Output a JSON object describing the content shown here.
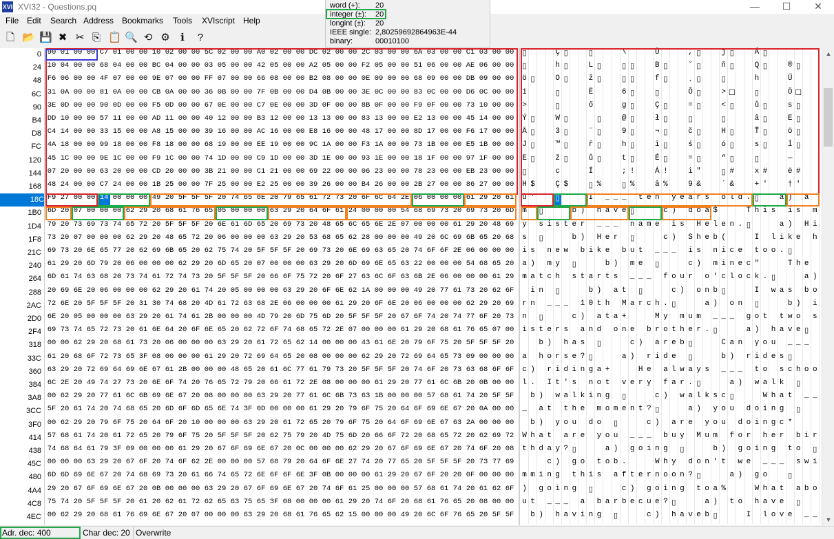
{
  "window": {
    "title": "XVI32 - Questions.pq",
    "app_icon_text": "XVI",
    "minimize_label": "—",
    "maximize_label": "☐",
    "close_label": "✕"
  },
  "menu": [
    "File",
    "Edit",
    "Search",
    "Address",
    "Bookmarks",
    "Tools",
    "XVIscript",
    "Help"
  ],
  "toolbar_icons": [
    "new-file-icon",
    "open-folder-icon",
    "save-icon",
    "delete-icon",
    "cut-icon",
    "copy-icon",
    "paste-icon",
    "find-icon",
    "replace-icon",
    "settings-icon",
    "script-icon",
    "help-icon"
  ],
  "toolbar_glyphs": [
    "🗋",
    "📂",
    "💾",
    "✖",
    "✂",
    "⎘",
    "📋",
    "🔍",
    "⟲",
    "⚙",
    "ℹ",
    "?"
  ],
  "inspector": {
    "rows": [
      {
        "label": "word (+):",
        "value": "20"
      },
      {
        "label": "integer (±):",
        "value": "20"
      },
      {
        "label": "longint (±):",
        "value": "20"
      },
      {
        "label": "IEEE single:",
        "value": "2,80259692864963E-44"
      },
      {
        "label": "binary:",
        "value": "00010100"
      }
    ]
  },
  "hex": {
    "addresses": [
      "0",
      "24",
      "48",
      "6C",
      "90",
      "B4",
      "D8",
      "FC",
      "120",
      "144",
      "168",
      "18C",
      "1B0",
      "1D4",
      "1F8",
      "21C",
      "240",
      "264",
      "288",
      "2AC",
      "2D0",
      "2F4",
      "318",
      "33C",
      "360",
      "384",
      "3A8",
      "3CC",
      "3F0",
      "414",
      "438",
      "45C",
      "480",
      "4A4",
      "4C8",
      "4EC"
    ],
    "rows": [
      "90 01 00 00 C7 01 00 00 10 02 00 00 5C 02 00 00 A0 02 00 00 DC 02 00 00 2C 03 00 00 6A 03 00 00 C1 03 00 00",
      "10 04 00 00 68 04 00 00 BC 04 00 00 03 05 00 00 42 05 00 00 A2 05 00 00 F2 05 00 00 51 06 00 00 AE 06 00 00",
      "F6 06 00 00 4F 07 00 00 9E 07 00 00 FF 07 00 00 66 08 00 00 B2 08 00 00 0E 09 00 00 68 09 00 00 DB 09 00 00",
      "31 0A 00 00 81 0A 00 00 CB 0A 00 00 36 0B 00 00 7F 0B 00 00 D4 0B 00 00 3E 0C 00 00 83 0C 00 00 D6 0C 00 00",
      "3E 0D 00 00 90 0D 00 00 F5 0D 00 00 67 0E 00 00 C7 0E 00 00 3D 0F 00 00 8B 0F 00 00 F9 0F 00 00 73 10 00 00",
      "DD 10 00 00 57 11 00 00 AD 11 00 00 40 12 00 00 B3 12 00 00 13 13 00 00 83 13 00 00 E2 13 00 00 45 14 00 00",
      "C4 14 00 00 33 15 00 00 A8 15 00 00 39 16 00 00 AC 16 00 00 E8 16 00 00 48 17 00 00 8D 17 00 00 F6 17 00 00",
      "4A 18 00 00 99 18 00 00 F8 18 00 00 68 19 00 00 EE 19 00 00 9C 1A 00 00 F3 1A 00 00 73 1B 00 00 E5 1B 00 00",
      "45 1C 00 00 9E 1C 00 00 F9 1C 00 00 74 1D 00 00 C9 1D 00 00 3D 1E 00 00 93 1E 00 00 18 1F 00 00 97 1F 00 00",
      "07 20 00 00 63 20 00 00 CD 20 00 00 3B 21 00 00 C1 21 00 00 69 22 00 00 06 23 00 00 78 23 00 00 EB 23 00 00",
      "48 24 00 00 C7 24 00 00 1B 25 00 00 7F 25 00 00 E2 25 00 00 39 26 00 00 B4 26 00 00 2B 27 00 00 86 27 00 00",
      "F9 27 00 00 14 00 00 00 49 20 5F 5F 5F 20 74 65 6E 20 79 65 61 72 73 20 6F 6C 64 2E 06 00 00 00 61 29 20 61",
      "6D 20 07 00 00 00 62 29 20 68 61 76 65 05 00 00 00 63 29 20 64 6F 61 24 00 00 00 54 68 69 73 20 69 73 20 6D",
      "79 20 73 69 73 74 65 72 20 5F 5F 5F 20 6E 61 6D 65 20 69 73 20 48 65 6C 65 6E 2E 07 00 00 00 61 29 20 48 69",
      "73 20 07 00 00 00 62 29 20 48 65 72 20 06 00 00 00 63 29 20 53 68 65 62 28 00 00 00 49 20 6C 69 6B 65 20 68",
      "69 73 20 6E 65 77 20 62 69 6B 65 20 62 75 74 20 5F 5F 5F 20 69 73 20 6E 69 63 65 20 74 6F 6F 2E 06 00 00 00",
      "61 29 20 6D 79 20 06 00 00 00 62 29 20 6D 65 20 07 00 00 00 63 29 20 6D 69 6E 65 63 22 00 00 00 54 68 65 20",
      "6D 61 74 63 68 20 73 74 61 72 74 73 20 5F 5F 5F 20 66 6F 75 72 20 6F 27 63 6C 6F 63 6B 2E 06 00 00 00 61 29",
      "20 69 6E 20 06 00 00 00 62 29 20 61 74 20 05 00 00 00 63 29 20 6F 6E 62 1A 00 00 00 49 20 77 61 73 20 62 6F",
      "72 6E 20 5F 5F 5F 20 31 30 74 68 20 4D 61 72 63 68 2E 06 00 00 00 61 29 20 6F 6E 20 06 00 00 00 62 29 20 69",
      "6E 20 05 00 00 00 63 29 20 61 74 61 2B 00 00 00 4D 79 20 6D 75 6D 20 5F 5F 5F 20 67 6F 74 20 74 77 6F 20 73",
      "69 73 74 65 72 73 20 61 6E 64 20 6F 6E 65 20 62 72 6F 74 68 65 72 2E 07 00 00 00 61 29 20 68 61 76 65 07 00",
      "00 00 62 29 20 68 61 73 20 06 00 00 00 63 29 20 61 72 65 62 14 00 00 00 43 61 6E 20 79 6F 75 20 5F 5F 5F 20",
      "61 20 68 6F 72 73 65 3F 08 00 00 00 61 29 20 72 69 64 65 20 08 00 00 00 62 29 20 72 69 64 65 73 09 00 00 00",
      "63 29 20 72 69 64 69 6E 67 61 2B 00 00 00 48 65 20 61 6C 77 61 79 73 20 5F 5F 5F 20 74 6F 20 73 63 68 6F 6F",
      "6C 2E 20 49 74 27 73 20 6E 6F 74 20 76 65 72 79 20 66 61 72 2E 08 00 00 00 61 29 20 77 61 6C 6B 20 0B 00 00",
      "00 62 29 20 77 61 6C 6B 69 6E 67 20 08 00 00 00 63 29 20 77 61 6C 6B 73 63 1B 00 00 00 57 68 61 74 20 5F 5F",
      "5F 20 61 74 20 74 68 65 20 6D 6F 6D 65 6E 74 3F 0D 00 00 00 61 29 20 79 6F 75 20 64 6F 69 6E 67 20 0A 00 00",
      "00 62 29 20 79 6F 75 20 64 6F 20 10 00 00 00 63 29 20 61 72 65 20 79 6F 75 20 64 6F 69 6E 67 63 2A 00 00 00",
      "57 68 61 74 20 61 72 65 20 79 6F 75 20 5F 5F 5F 20 62 75 79 20 4D 75 6D 20 66 6F 72 20 68 65 72 20 62 69 72",
      "74 68 64 61 79 3F 09 00 00 00 61 29 20 67 6F 69 6E 67 20 0C 00 00 00 62 29 20 67 6F 69 6E 67 20 74 6F 20 08",
      "00 00 00 63 29 20 67 6F 20 74 6F 62 2E 00 00 00 57 68 79 20 64 6F 6E 27 74 20 77 65 20 5F 5F 5F 20 73 77 69",
      "6D 6D 69 6E 67 20 74 68 69 73 20 61 66 74 65 72 6E 6F 6F 6E 3F 0B 00 00 00 61 29 20 67 6F 20 20 0F 00 00 00",
      "29 20 67 6F 69 6E 67 20 0B 00 00 00 63 29 20 67 6F 69 6E 67 20 74 6F 61 25 00 00 00 57 68 61 74 20 61 62 6F",
      "75 74 20 5F 5F 5F 20 61 20 62 61 72 62 65 63 75 65 3F 08 00 00 00 61 29 20 74 6F 20 68 61 76 65 20 08 00 00",
      "00 62 29 20 68 61 76 69 6E 67 20 07 00 00 00 63 29 20 68 61 76 65 62 15 00 00 00 49 20 6C 6F 76 65 20 5F 5F"
    ],
    "selected_row": 11,
    "selected_col": 4,
    "selected_addr_row": 11
  },
  "text_rows": [
    "▯   Ç▯  ▯   \\   Ü   ,▯  j▯  Á▯",
    "▯   h▯  L▯  ▯▯  B▯  ˘▯  ň▯  Q▯  ®▯",
    "ö▯  O▯  ž▯  ▯▯  f▯  ˛▯  ▯   h   Ű",
    "1   ▯   Ë   6▯  ▯   Ô▯  >☐  ▯   Ö☐",
    ">   ▯   ő   g▯  Ç▯  =▯  <▯  ů▯  s▯",
    "Ý▯  W▯  ­▯  @▯  ł▯  ▯   ▯   â▯  E▯",
    "Ä▯  3▯  ¨▯  9▯  ¬▯  č▯  H▯  Ť▯  ö▯",
    "J▯  ™▯  ř▯  h▯  î▯  ś▯  ó▯  s▯  ĺ▯",
    "E▯  ž▯  ů▯  t▯  É▯  =▯  “▯  ▯   —",
    "▯   c   Í   ;!  Á!  i\"  ▯#  x#  ë#",
    "H$  Ç$  ▯%  ▯%  â%  9&  ´&  +'  †'",
    "ů'  ▯   I ___ ten years old.▯  a) a",
    "m ▯   b) have▯   c) doa$   This is m",
    "y sister ___ name is Helen.▯   a) Hi",
    "s ▯   b) Her ▯   c) Sheb(   I like h",
    "is new bike but ___ is nice too.▯",
    "a) my ▯   b) me ▯   c) minec\"   The ",
    "match starts ___ four o'clock.▯   a)",
    " in ▯   b) at ▯   c) onb▯   I was bo",
    "rn ___ 10th March.▯   a) on ▯   b) i",
    "n ▯   c) ata+   My mum ___ got two s",
    "isters and one brother.▯   a) have▯ ",
    "  b) has ▯   c) areb▯   Can you ___ ",
    "a horse?▯   a) ride ▯   b) rides▯   ",
    "c) ridinga+   He always ___ to schoo",
    "l. It's not very far.▯   a) walk ▯  ",
    " b) walking ▯   c) walksc▯   What __",
    "_ at the moment?▯   a) you doing ▯  ",
    " b) you do ▯   c) are you doingc*   ",
    "What are you ___ buy Mum for her bir",
    "thday?▯   a) going ▯   b) going to ▯",
    "   c) go tob.   Why don't we ___ swi",
    "mming this afternoon?▯   a) go  ▯   ",
    ") going ▯   c) going toa%   What abo",
    "ut ___ a barbecue?▯   a) to have ▯  ",
    " b) having ▯   c) haveb▯   I love __"
  ],
  "status": {
    "address": "Adr. dec: 400",
    "char": "Char dec: 20",
    "mode": "Overwrite"
  },
  "annotation_colors": {
    "red": "#d9232e",
    "green": "#20a84a",
    "orange": "#f08020",
    "blue": "#3a3ad0"
  }
}
